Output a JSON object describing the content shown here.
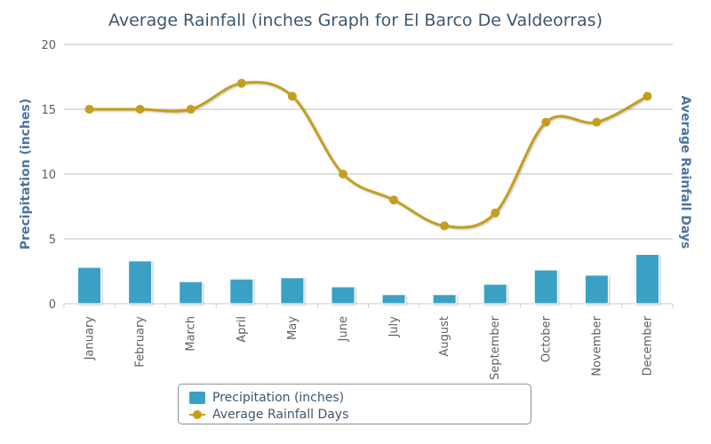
{
  "chart_data": {
    "type": "bar",
    "title": "Average Rainfall (inches Graph for El Barco De Valdeorras)",
    "ylabel_left": "Precipitation (inches)",
    "ylabel_right": "Average Rainfall Days",
    "ylim": [
      0,
      20
    ],
    "yticks": [
      "0",
      "5",
      "10",
      "15",
      "20"
    ],
    "grid": true,
    "legend_position": "bottom-center",
    "categories": [
      "January",
      "February",
      "March",
      "April",
      "May",
      "June",
      "July",
      "August",
      "September",
      "October",
      "November",
      "December"
    ],
    "series": [
      {
        "name": "Precipitation (inches)",
        "type": "bar",
        "color": "#3ba1c4",
        "values": [
          2.8,
          3.3,
          1.7,
          1.9,
          2.0,
          1.3,
          0.7,
          0.7,
          1.5,
          2.6,
          2.2,
          3.8
        ]
      },
      {
        "name": "Average Rainfall Days",
        "type": "line",
        "color": "#c49f1e",
        "values": [
          15,
          15,
          15,
          17,
          16,
          10,
          8,
          6,
          7,
          14,
          14,
          16
        ]
      }
    ]
  }
}
